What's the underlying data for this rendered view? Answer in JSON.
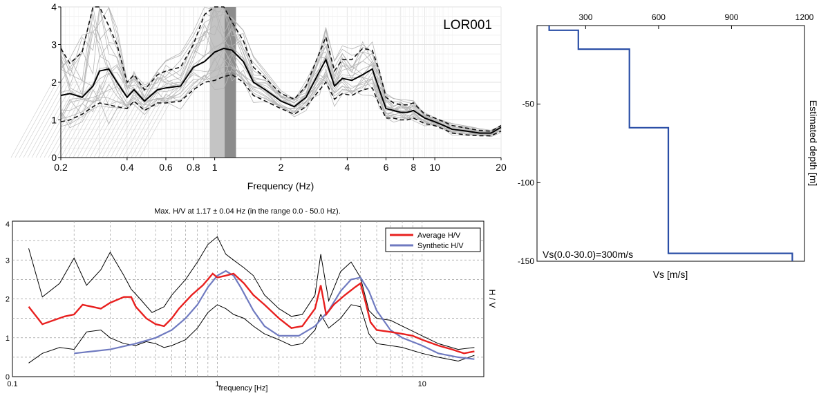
{
  "chart_data": [
    {
      "id": "A",
      "type": "line",
      "annotation": "LOR001",
      "xlabel": "Frequency (Hz)",
      "xscale": "log",
      "xlim": [
        0.2,
        20
      ],
      "ylim": [
        0,
        4
      ],
      "xticks": [
        0.2,
        0.4,
        0.6,
        0.8,
        1,
        2,
        4,
        6,
        8,
        10,
        20
      ],
      "xtick_labels": [
        "0.2",
        "0.4",
        "0.6",
        "0.8",
        "1",
        "2",
        "4",
        "6",
        "8",
        "10",
        "20"
      ],
      "yticks": [
        0,
        1,
        2,
        3,
        4
      ],
      "ytick_labels": [
        "0",
        "1",
        "2",
        "3",
        "4"
      ],
      "grid": true,
      "shaded_band": {
        "x0": 0.95,
        "x1": 1.25,
        "core": [
          1.11,
          1.25
        ]
      },
      "mean": {
        "x": [
          0.2,
          0.22,
          0.25,
          0.28,
          0.3,
          0.33,
          0.36,
          0.4,
          0.43,
          0.48,
          0.55,
          0.6,
          0.7,
          0.8,
          0.9,
          1.0,
          1.1,
          1.2,
          1.35,
          1.5,
          1.7,
          2.0,
          2.3,
          2.6,
          3.0,
          3.2,
          3.5,
          3.8,
          4.2,
          4.7,
          5.2,
          5.6,
          6.0,
          6.5,
          7.0,
          7.5,
          8.0,
          9.0,
          10,
          11,
          12,
          14,
          16,
          18,
          20
        ],
        "y": [
          1.65,
          1.7,
          1.6,
          1.9,
          2.3,
          2.35,
          2.0,
          1.6,
          1.8,
          1.5,
          1.8,
          1.85,
          1.9,
          2.4,
          2.55,
          2.8,
          2.9,
          2.85,
          2.55,
          2.0,
          1.8,
          1.5,
          1.35,
          1.6,
          2.3,
          2.6,
          1.9,
          2.1,
          2.05,
          2.2,
          2.35,
          1.8,
          1.3,
          1.25,
          1.2,
          1.2,
          1.25,
          1.05,
          0.95,
          0.85,
          0.75,
          0.7,
          0.65,
          0.65,
          0.8
        ]
      },
      "upper": {
        "x": [
          0.2,
          0.22,
          0.25,
          0.28,
          0.3,
          0.33,
          0.36,
          0.4,
          0.43,
          0.48,
          0.55,
          0.6,
          0.7,
          0.8,
          0.9,
          1.0,
          1.1,
          1.2,
          1.35,
          1.5,
          1.7,
          2.0,
          2.3,
          2.6,
          3.0,
          3.2,
          3.5,
          3.8,
          4.2,
          4.7,
          5.2,
          5.6,
          6.0,
          6.5,
          7.0,
          7.5,
          8.0,
          9.0,
          10,
          11,
          12,
          14,
          16,
          18,
          20
        ],
        "y": [
          2.9,
          2.5,
          2.8,
          4.0,
          4.0,
          3.5,
          3.0,
          2.0,
          2.2,
          1.8,
          2.2,
          2.3,
          2.4,
          3.0,
          3.8,
          4.0,
          4.0,
          3.6,
          3.1,
          2.4,
          2.1,
          1.7,
          1.55,
          1.9,
          2.8,
          3.2,
          2.3,
          2.6,
          2.6,
          2.9,
          2.85,
          2.3,
          1.6,
          1.45,
          1.4,
          1.4,
          1.45,
          1.15,
          1.05,
          0.95,
          0.85,
          0.78,
          0.72,
          0.7,
          0.85
        ]
      },
      "lower": {
        "x": [
          0.2,
          0.22,
          0.25,
          0.28,
          0.3,
          0.33,
          0.36,
          0.4,
          0.43,
          0.48,
          0.55,
          0.6,
          0.7,
          0.8,
          0.9,
          1.0,
          1.1,
          1.2,
          1.35,
          1.5,
          1.7,
          2.0,
          2.3,
          2.6,
          3.0,
          3.2,
          3.5,
          3.8,
          4.2,
          4.7,
          5.2,
          5.6,
          6.0,
          6.5,
          7.0,
          7.5,
          8.0,
          9.0,
          10,
          11,
          12,
          14,
          16,
          18,
          20
        ],
        "y": [
          0.95,
          1.0,
          1.15,
          1.35,
          1.45,
          1.4,
          1.35,
          1.3,
          1.5,
          1.25,
          1.45,
          1.45,
          1.5,
          1.8,
          2.0,
          2.05,
          2.15,
          2.2,
          2.0,
          1.65,
          1.5,
          1.3,
          1.15,
          1.35,
          1.8,
          2.0,
          1.55,
          1.7,
          1.65,
          1.8,
          1.85,
          1.4,
          1.05,
          1.05,
          1.0,
          1.0,
          1.05,
          0.9,
          0.85,
          0.75,
          0.65,
          0.6,
          0.58,
          0.58,
          0.7
        ]
      }
    },
    {
      "id": "B",
      "type": "line",
      "title": "Max. H/V at 1.17 ± 0.04 Hz (in the range 0.0 - 50.0 Hz).",
      "xlabel": "frequency [Hz]",
      "ylabel": "H / V",
      "xscale": "log",
      "xlim": [
        0.1,
        20
      ],
      "ylim": [
        0,
        4
      ],
      "xticks": [
        0.1,
        1,
        10
      ],
      "xtick_labels": [
        "0.1",
        "1",
        "10"
      ],
      "yticks": [
        0,
        1,
        2,
        3,
        4
      ],
      "ytick_labels": [
        "0",
        "1",
        "2",
        "3",
        "4"
      ],
      "grid": true,
      "legend": {
        "position": "top-right",
        "entries": [
          "Average H/V",
          "Synthetic H/V"
        ]
      },
      "series": [
        {
          "name": "Average H/V",
          "color": "#e8201f",
          "x": [
            0.12,
            0.14,
            0.18,
            0.2,
            0.22,
            0.27,
            0.3,
            0.35,
            0.38,
            0.4,
            0.45,
            0.5,
            0.55,
            0.6,
            0.65,
            0.75,
            0.85,
            0.95,
            1.0,
            1.1,
            1.2,
            1.35,
            1.5,
            1.7,
            2.0,
            2.3,
            2.6,
            3.0,
            3.2,
            3.4,
            3.7,
            4.2,
            4.7,
            5.0,
            5.3,
            5.6,
            6.0,
            7.0,
            8.0,
            9.0,
            10,
            12,
            14,
            16,
            18
          ],
          "y": [
            1.8,
            1.35,
            1.55,
            1.6,
            1.85,
            1.75,
            1.9,
            2.05,
            2.05,
            1.8,
            1.5,
            1.35,
            1.3,
            1.5,
            1.75,
            2.1,
            2.35,
            2.65,
            2.55,
            2.6,
            2.65,
            2.4,
            2.1,
            1.85,
            1.5,
            1.25,
            1.3,
            1.75,
            2.35,
            1.6,
            1.85,
            2.1,
            2.3,
            2.4,
            1.9,
            1.4,
            1.2,
            1.15,
            1.1,
            1.05,
            0.95,
            0.8,
            0.7,
            0.6,
            0.65
          ]
        },
        {
          "name": "Synthetic H/V",
          "color": "#6f7ac0",
          "x": [
            0.2,
            0.3,
            0.4,
            0.5,
            0.6,
            0.7,
            0.8,
            0.9,
            1.0,
            1.1,
            1.2,
            1.3,
            1.5,
            1.7,
            2.0,
            2.5,
            3.0,
            3.5,
            4.0,
            4.5,
            5.0,
            5.5,
            6.0,
            7.0,
            8.0,
            10,
            12,
            15,
            18
          ],
          "y": [
            0.6,
            0.7,
            0.85,
            1.0,
            1.2,
            1.5,
            1.85,
            2.3,
            2.6,
            2.72,
            2.6,
            2.3,
            1.7,
            1.3,
            1.05,
            1.05,
            1.3,
            1.7,
            2.2,
            2.5,
            2.55,
            2.2,
            1.7,
            1.2,
            1.0,
            0.8,
            0.6,
            0.5,
            0.45
          ]
        },
        {
          "name": "",
          "color": "#000000",
          "x": [
            0.12,
            0.14,
            0.17,
            0.2,
            0.23,
            0.27,
            0.3,
            0.35,
            0.38,
            0.42,
            0.48,
            0.55,
            0.6,
            0.7,
            0.8,
            0.9,
            1.0,
            1.1,
            1.2,
            1.35,
            1.5,
            1.7,
            2.0,
            2.3,
            2.6,
            3.0,
            3.2,
            3.5,
            4.0,
            4.5,
            5.0,
            5.5,
            6.0,
            7.0,
            8.0,
            10,
            12,
            15,
            18
          ],
          "y": [
            3.3,
            2.05,
            2.4,
            3.05,
            2.35,
            2.75,
            3.2,
            2.6,
            2.25,
            2.0,
            1.65,
            1.8,
            2.1,
            2.5,
            2.95,
            3.4,
            3.6,
            3.15,
            3.0,
            2.8,
            2.6,
            2.1,
            1.75,
            1.55,
            1.6,
            2.1,
            3.15,
            1.95,
            2.7,
            2.95,
            2.55,
            1.7,
            1.5,
            1.45,
            1.3,
            1.05,
            0.85,
            0.7,
            0.75
          ]
        },
        {
          "name": "",
          "color": "#000000",
          "x": [
            0.12,
            0.14,
            0.17,
            0.2,
            0.23,
            0.27,
            0.3,
            0.35,
            0.4,
            0.45,
            0.5,
            0.55,
            0.6,
            0.7,
            0.8,
            0.9,
            1.0,
            1.1,
            1.2,
            1.35,
            1.5,
            1.7,
            2.0,
            2.3,
            2.6,
            3.0,
            3.2,
            3.5,
            4.0,
            4.5,
            5.0,
            5.5,
            6.0,
            7.0,
            8.0,
            10,
            12,
            15,
            18
          ],
          "y": [
            0.35,
            0.6,
            0.75,
            0.7,
            1.15,
            1.2,
            1.0,
            0.85,
            0.8,
            0.9,
            0.85,
            0.75,
            0.8,
            0.95,
            1.25,
            1.65,
            1.85,
            1.75,
            1.6,
            1.5,
            1.3,
            1.1,
            0.95,
            0.8,
            0.85,
            1.2,
            1.6,
            1.25,
            1.5,
            1.85,
            1.8,
            1.1,
            0.85,
            0.8,
            0.75,
            0.6,
            0.5,
            0.4,
            0.55
          ]
        }
      ]
    },
    {
      "id": "C",
      "type": "line",
      "xlabel": "Vs [m/s]",
      "ylabel": "Estimated depth [m]",
      "annotation": "Vs(0.0-30.0)=300m/s",
      "xlim": [
        100,
        1200
      ],
      "ylim": [
        -150,
        0
      ],
      "xticks": [
        300,
        600,
        900,
        1200
      ],
      "xtick_labels": [
        "300",
        "600",
        "900",
        "1200"
      ],
      "yticks": [
        -50,
        -100,
        -150
      ],
      "ytick_labels": [
        "-50",
        "-100",
        "-150"
      ],
      "grid": false,
      "series": [
        {
          "name": "",
          "color": "#2a4ea6",
          "x": [
            150,
            150,
            270,
            270,
            480,
            480,
            640,
            640,
            1150,
            1150
          ],
          "y": [
            0,
            -3,
            -3,
            -15,
            -15,
            -65,
            -65,
            -145,
            -145,
            -150
          ]
        }
      ]
    }
  ]
}
